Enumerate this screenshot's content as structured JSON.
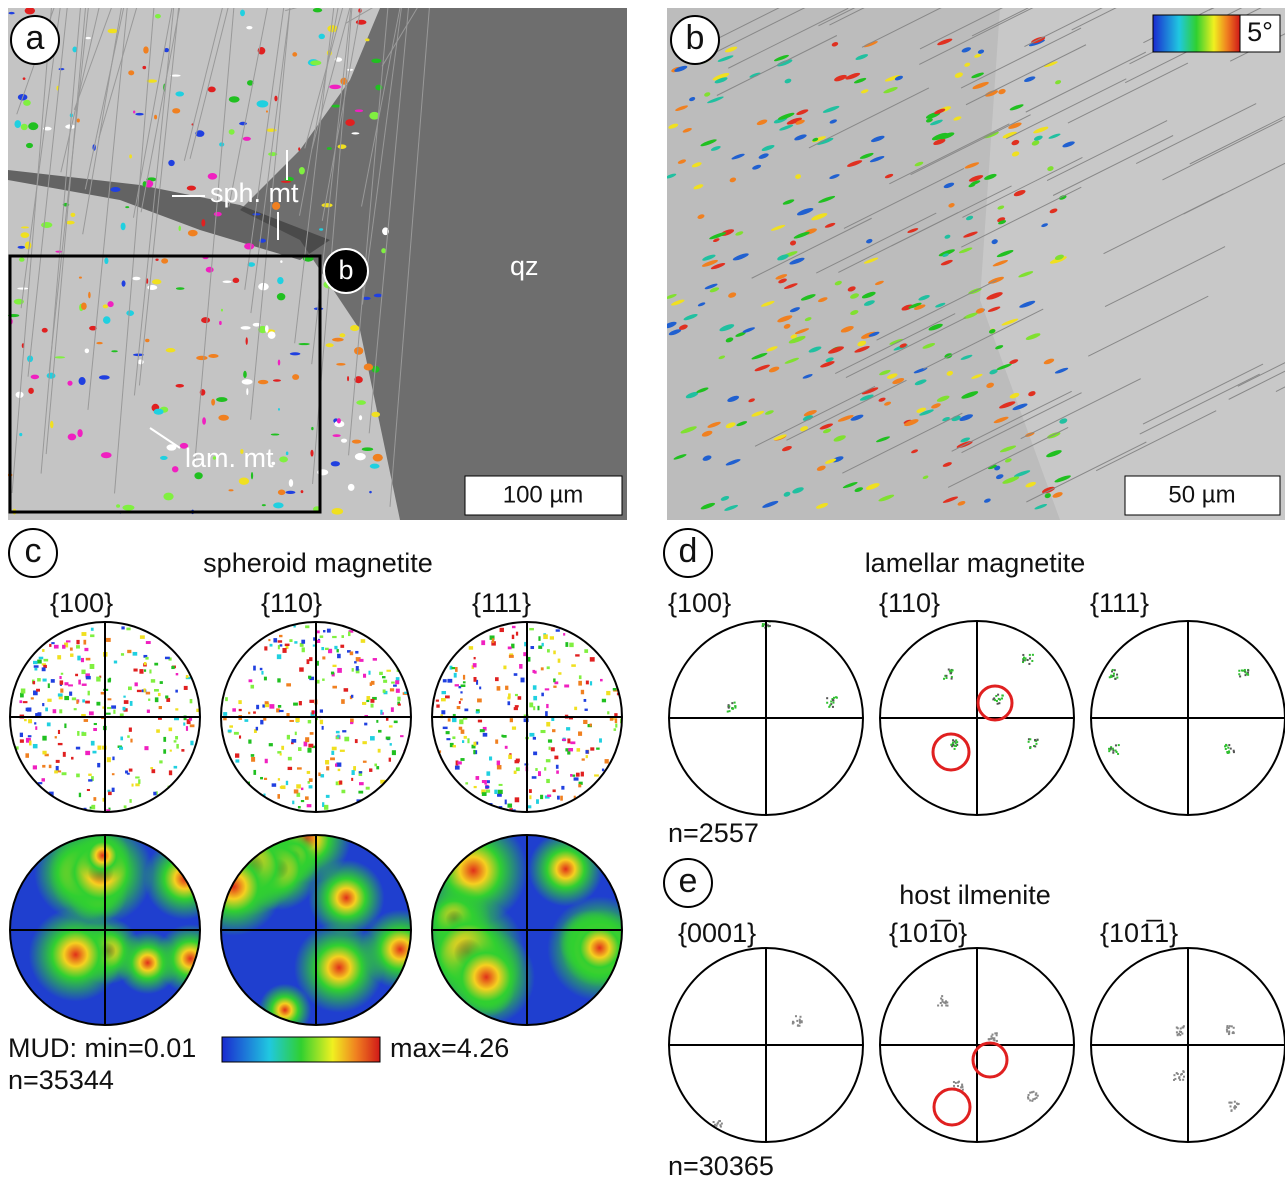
{
  "panels": {
    "a": {
      "label": "a",
      "annotations": [
        "sph. mt",
        "qz",
        "lam. mt",
        "b"
      ],
      "scale_bar": "100 µm"
    },
    "b": {
      "label": "b",
      "color_key": "5°",
      "scale_bar": "50 µm"
    },
    "c": {
      "label": "c",
      "title": "spheroid magnetite",
      "planes": [
        "{100}",
        "{110}",
        "{111}"
      ],
      "mud_min": "MUD: min=0.01",
      "mud_max": "max=4.26",
      "n": "n=35344"
    },
    "d": {
      "label": "d",
      "title": "lamellar magnetite",
      "planes": [
        "{100}",
        "{110}",
        "{111}"
      ],
      "n": "n=2557"
    },
    "e": {
      "label": "e",
      "title": "host ilmenite",
      "planes": [
        "{0001}",
        "{101̅0}",
        "{101̅1}"
      ],
      "n": "n=30365"
    }
  }
}
